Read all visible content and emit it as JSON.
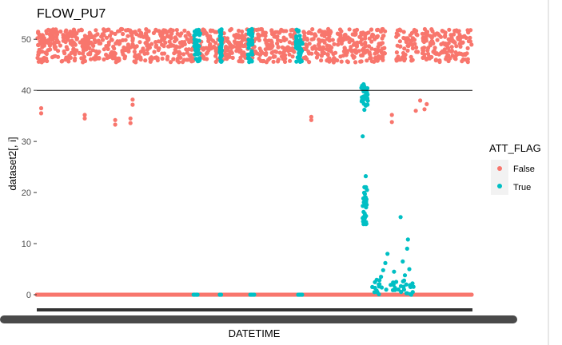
{
  "chart_data": {
    "type": "scatter",
    "title": "FLOW_PU7",
    "xlabel": "DATETIME",
    "ylabel": "dataset2[, i]",
    "ylim": [
      -2.5,
      53
    ],
    "yticks": [
      0,
      10,
      20,
      30,
      40,
      50
    ],
    "x_tick_labels_overplotted": true,
    "hline": 40,
    "grid": false,
    "legend": {
      "title": "ATT_FLAG",
      "position": "right",
      "entries": [
        {
          "label": "False",
          "color": "#F8766D"
        },
        {
          "label": "True",
          "color": "#00BFC4"
        }
      ]
    },
    "series": [
      {
        "name": "False",
        "color": "#F8766D",
        "main_band": {
          "value_min": 45.5,
          "value_max": 52
        },
        "zero_band": {
          "value": 0
        },
        "outliers": [
          {
            "x": 0.01,
            "y": 36.5
          },
          {
            "x": 0.01,
            "y": 35.5
          },
          {
            "x": 0.11,
            "y": 35.2
          },
          {
            "x": 0.11,
            "y": 34.5
          },
          {
            "x": 0.18,
            "y": 34.2
          },
          {
            "x": 0.18,
            "y": 33.3
          },
          {
            "x": 0.22,
            "y": 38.2
          },
          {
            "x": 0.22,
            "y": 37.2
          },
          {
            "x": 0.215,
            "y": 34.5
          },
          {
            "x": 0.215,
            "y": 33.6
          },
          {
            "x": 0.63,
            "y": 34.8
          },
          {
            "x": 0.63,
            "y": 34.2
          },
          {
            "x": 0.815,
            "y": 35.2
          },
          {
            "x": 0.815,
            "y": 33.8
          },
          {
            "x": 0.87,
            "y": 36.0
          },
          {
            "x": 0.88,
            "y": 38.0
          },
          {
            "x": 0.89,
            "y": 36.3
          },
          {
            "x": 0.895,
            "y": 37.3
          }
        ]
      },
      {
        "name": "True",
        "color": "#00BFC4",
        "segments_top": [
          [
            0.36,
            0.375
          ],
          [
            0.42,
            0.425
          ],
          [
            0.485,
            0.495
          ],
          [
            0.595,
            0.61
          ]
        ],
        "segments_zero": [
          [
            0.36,
            0.37
          ],
          [
            0.42,
            0.423
          ],
          [
            0.49,
            0.5
          ],
          [
            0.6,
            0.61
          ]
        ],
        "points": [
          {
            "x": 0.745,
            "y": 40.5
          },
          {
            "x": 0.75,
            "y": 41.2
          },
          {
            "x": 0.75,
            "y": 39.8
          },
          {
            "x": 0.752,
            "y": 38.5
          },
          {
            "x": 0.755,
            "y": 37.0
          },
          {
            "x": 0.752,
            "y": 36.2
          },
          {
            "x": 0.748,
            "y": 31.0
          },
          {
            "x": 0.755,
            "y": 23.2
          },
          {
            "x": 0.758,
            "y": 20.5
          },
          {
            "x": 0.755,
            "y": 19.0
          },
          {
            "x": 0.752,
            "y": 17.5
          },
          {
            "x": 0.75,
            "y": 16.2
          },
          {
            "x": 0.748,
            "y": 15.0
          },
          {
            "x": 0.75,
            "y": 13.8
          },
          {
            "x": 0.78,
            "y": 0.8
          },
          {
            "x": 0.785,
            "y": 2.0
          },
          {
            "x": 0.79,
            "y": 3.5
          },
          {
            "x": 0.795,
            "y": 4.8
          },
          {
            "x": 0.8,
            "y": 6.2
          },
          {
            "x": 0.805,
            "y": 8.0
          },
          {
            "x": 0.802,
            "y": 1.0
          },
          {
            "x": 0.77,
            "y": 1.5
          },
          {
            "x": 0.775,
            "y": 0.5
          },
          {
            "x": 0.825,
            "y": 2.5
          },
          {
            "x": 0.82,
            "y": 4.5
          },
          {
            "x": 0.835,
            "y": 15.2
          },
          {
            "x": 0.84,
            "y": 6.5
          },
          {
            "x": 0.845,
            "y": 3.8
          },
          {
            "x": 0.848,
            "y": 2.0
          },
          {
            "x": 0.85,
            "y": 9.0
          },
          {
            "x": 0.852,
            "y": 10.8
          },
          {
            "x": 0.843,
            "y": 1.0
          },
          {
            "x": 0.855,
            "y": 5.0
          },
          {
            "x": 0.858,
            "y": 1.5
          }
        ]
      }
    ]
  }
}
